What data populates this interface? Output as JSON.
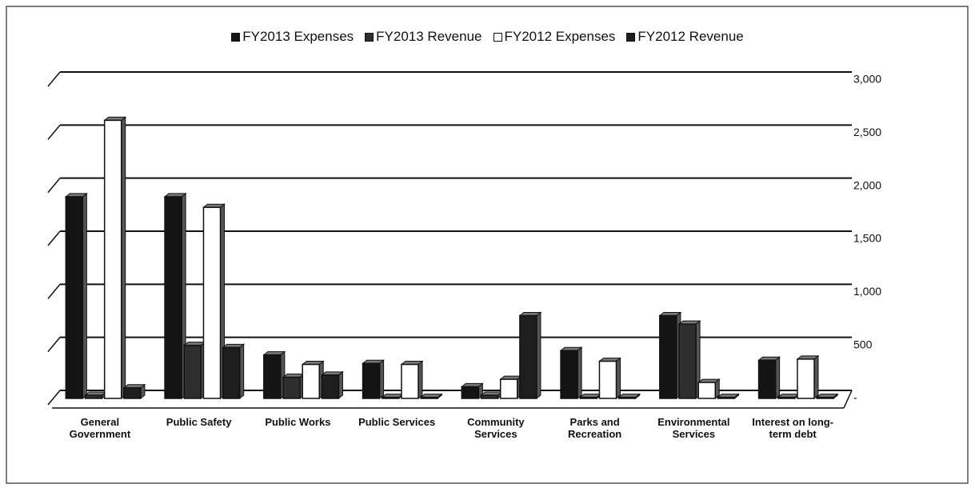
{
  "chart_data": {
    "type": "bar",
    "categories": [
      "General Government",
      "Public Safety",
      "Public Works",
      "Public Services",
      "Community Services",
      "Parks and Recreation",
      "Environmental Services",
      "Interest on long-term debt"
    ],
    "series": [
      {
        "name": "FY2013 Expenses",
        "color": "#141414",
        "values": [
          1900,
          1900,
          410,
          330,
          110,
          450,
          780,
          360
        ]
      },
      {
        "name": "FY2013 Revenue",
        "color": "#2e2e2e",
        "values": [
          30,
          500,
          200,
          10,
          30,
          10,
          700,
          10
        ]
      },
      {
        "name": "FY2012 Expenses",
        "color": "#ffffff",
        "values": [
          2620,
          1800,
          320,
          320,
          180,
          350,
          150,
          370
        ]
      },
      {
        "name": "FY2012 Revenue",
        "color": "#1e1e1e",
        "values": [
          100,
          480,
          220,
          10,
          780,
          10,
          10,
          10
        ]
      }
    ],
    "ylim": [
      0,
      3000
    ],
    "yticks": [
      {
        "value": 0,
        "label": "-"
      },
      500,
      {
        "value": 1000,
        "label": "1,000"
      },
      {
        "value": 1500,
        "label": "1,500"
      },
      {
        "value": 2000,
        "label": "2,000"
      },
      {
        "value": 2500,
        "label": "2,500"
      },
      {
        "value": 3000,
        "label": "3,000"
      }
    ],
    "grid": true
  }
}
